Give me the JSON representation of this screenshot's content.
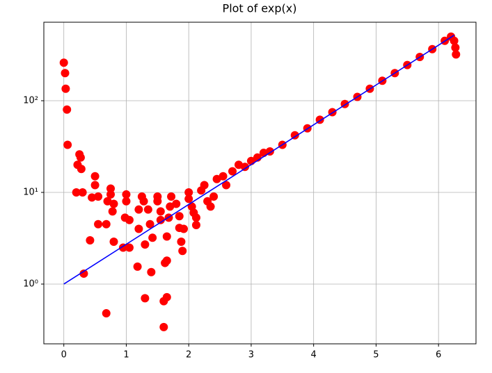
{
  "chart_data": {
    "type": "scatter",
    "title": "Plot of exp(x)",
    "xlim": [
      -0.32,
      6.6
    ],
    "xticks": [
      0,
      1,
      2,
      3,
      4,
      5,
      6
    ],
    "ylim": [
      0.223,
      718
    ],
    "log_y": true,
    "yticks": [
      {
        "value": 1,
        "label": "10⁰"
      },
      {
        "value": 10,
        "label": "10¹"
      },
      {
        "value": 100,
        "label": "10²"
      }
    ],
    "grid": true,
    "series": [
      {
        "style": "scatter",
        "color": "#ff0000",
        "x": [
          0,
          0.02,
          0.03,
          0.05,
          0.06,
          0.2,
          0.22,
          0.25,
          0.27,
          0.28,
          0.3,
          0.32,
          0.42,
          0.45,
          0.5,
          0.5,
          0.55,
          0.55,
          0.68,
          0.68,
          0.7,
          0.75,
          0.75,
          0.78,
          0.8,
          0.8,
          0.95,
          0.98,
          1.0,
          1.0,
          1.05,
          1.05,
          1.18,
          1.2,
          1.2,
          1.25,
          1.28,
          1.3,
          1.3,
          1.35,
          1.38,
          1.4,
          1.42,
          1.5,
          1.5,
          1.55,
          1.55,
          1.6,
          1.6,
          1.62,
          1.65,
          1.65,
          1.65,
          1.68,
          1.7,
          1.72,
          1.8,
          1.85,
          1.85,
          1.88,
          1.9,
          1.92,
          2.0,
          2.0,
          2.05,
          2.08,
          2.12,
          2.12,
          2.2,
          2.25,
          2.3,
          2.35,
          2.4,
          2.45,
          2.55,
          2.6,
          2.7,
          2.8,
          2.9,
          3.0,
          3.1,
          3.2,
          3.3,
          3.5,
          3.7,
          3.9,
          4.1,
          4.3,
          4.5,
          4.7,
          4.9,
          5.1,
          5.3,
          5.5,
          5.7,
          5.9,
          6.1,
          6.2,
          6.25,
          6.27,
          6.28
        ],
        "values": [
          260,
          200,
          135,
          80,
          33,
          10,
          20,
          26,
          24,
          18,
          10,
          1.3,
          3,
          8.8,
          15,
          12,
          9,
          4.5,
          0.48,
          4.5,
          8,
          11,
          9.5,
          6.2,
          2.9,
          7.5,
          2.5,
          5.3,
          9.5,
          8,
          5,
          2.5,
          1.55,
          4,
          6.5,
          9,
          8,
          2.7,
          0.7,
          6.5,
          4.5,
          1.35,
          3.2,
          9,
          8,
          6.2,
          5,
          0.34,
          0.65,
          1.7,
          0.72,
          1.8,
          3.3,
          5.3,
          7,
          9,
          7.5,
          5.5,
          4.1,
          2.9,
          2.3,
          4,
          10,
          8.5,
          7,
          6,
          5.3,
          4.4,
          10.5,
          12,
          8,
          7,
          9,
          14,
          15,
          12,
          17,
          20,
          19,
          22,
          24,
          27,
          28,
          33,
          42,
          50,
          62,
          75,
          92,
          110,
          135,
          165,
          200,
          245,
          300,
          365,
          450,
          500,
          450,
          380,
          320
        ]
      },
      {
        "style": "line",
        "color": "#0000ff",
        "x": [
          0,
          1,
          2,
          3,
          4,
          5,
          6,
          6.25
        ],
        "values": [
          1,
          2.72,
          7.39,
          20.09,
          54.6,
          148.4,
          403.4,
          518
        ]
      }
    ]
  }
}
